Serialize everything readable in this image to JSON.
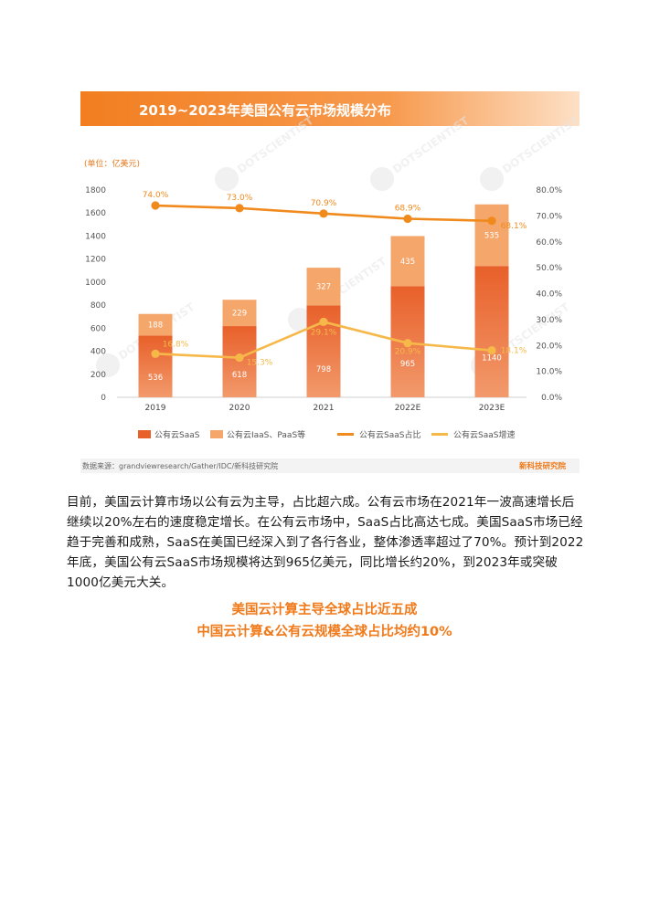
{
  "colors": {
    "banner_start": "#f27e20",
    "banner_end": "#fde0c6",
    "saas_bar": "#e8602a",
    "iaas_bar": "#f5a66a",
    "saas_share_line": "#f08a1c",
    "saas_growth_line": "#f7b84a",
    "accent_text": "#f07a1a",
    "watermark": "#e6e6e6"
  },
  "chart_data": {
    "type": "bar",
    "title": "2019~2023年美国公有云市场规模分布",
    "unit_label": "(单位：亿美元)",
    "categories": [
      "2019",
      "2020",
      "2021",
      "2022E",
      "2023E"
    ],
    "y_left": {
      "lim": [
        0,
        1800
      ],
      "ticks": [
        "0",
        "200",
        "400",
        "600",
        "800",
        "1000",
        "1200",
        "1400",
        "1600",
        "1800"
      ]
    },
    "y_right": {
      "lim": [
        0,
        80
      ],
      "ticks": [
        "0.0%",
        "10.0%",
        "20.0%",
        "30.0%",
        "40.0%",
        "50.0%",
        "60.0%",
        "70.0%",
        "80.0%"
      ]
    },
    "stacked": true,
    "series": [
      {
        "name": "公有云SaaS",
        "kind": "bar",
        "axis": "left",
        "values": [
          536,
          618,
          798,
          965,
          1140
        ],
        "labels": [
          "536",
          "618",
          "798",
          "965",
          "1140"
        ]
      },
      {
        "name": "公有云IaaS、PaaS等",
        "kind": "bar",
        "axis": "left",
        "values": [
          188,
          229,
          327,
          435,
          535
        ],
        "labels": [
          "188",
          "229",
          "327",
          "435",
          "535"
        ]
      },
      {
        "name": "公有云SaaS占比",
        "kind": "line",
        "axis": "right",
        "values": [
          74.0,
          73.0,
          70.9,
          68.9,
          68.1
        ],
        "labels": [
          "74.0%",
          "73.0%",
          "70.9%",
          "68.9%",
          "68.1%"
        ]
      },
      {
        "name": "公有云SaaS增速",
        "kind": "line",
        "axis": "right",
        "values": [
          16.8,
          15.3,
          29.1,
          20.9,
          18.1
        ],
        "labels": [
          "16.8%",
          "15.3%",
          "29.1%",
          "20.9%",
          "18.1%"
        ]
      }
    ],
    "legend_position": "bottom",
    "source": "数据来源：grandviewresearch/Gather/IDC/新科技研究院",
    "brand": "新科技研究院",
    "watermark_text": "DOTSCIENTIST"
  },
  "body_text": "目前，美国云计算市场以公有云为主导，占比超六成。公有云市场在2021年一波高速增长后继续以20%左右的速度稳定增长。在公有云市场中，SaaS占比高达七成。美国SaaS市场已经趋于完善和成熟，SaaS在美国已经深入到了各行各业，整体渗透率超过了70%。预计到2022年底，美国公有云SaaS市场规模将达到965亿美元，同比增长约20%，到2023年或突破1000亿美元大关。",
  "subheads": [
    "美国云计算主导全球占比近五成",
    "中国云计算&公有云规模全球占比均约10%"
  ]
}
